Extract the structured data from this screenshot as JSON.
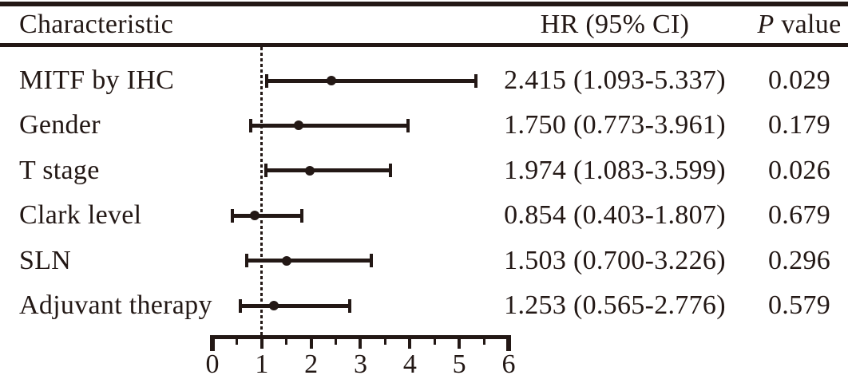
{
  "figure": {
    "headers": {
      "characteristic": "Characteristic",
      "hr": "HR (95% CI)",
      "p_italic": "P",
      "p_rest": " value"
    }
  },
  "colors": {
    "ink": "#231815",
    "background": "#ffffff"
  },
  "chart_data": {
    "type": "forest",
    "title": "",
    "columns": [
      "Characteristic",
      "HR (95% CI)",
      "P value"
    ],
    "rows": [
      {
        "label": "MITF by IHC",
        "hr": 2.415,
        "ci_low": 1.093,
        "ci_high": 5.337,
        "hr_ci_text": "2.415 (1.093-5.337)",
        "p_value": "0.029"
      },
      {
        "label": "Gender",
        "hr": 1.75,
        "ci_low": 0.773,
        "ci_high": 3.961,
        "hr_ci_text": "1.750 (0.773-3.961)",
        "p_value": "0.179"
      },
      {
        "label": "T stage",
        "hr": 1.974,
        "ci_low": 1.083,
        "ci_high": 3.599,
        "hr_ci_text": "1.974 (1.083-3.599)",
        "p_value": "0.026"
      },
      {
        "label": "Clark level",
        "hr": 0.854,
        "ci_low": 0.403,
        "ci_high": 1.807,
        "hr_ci_text": "0.854 (0.403-1.807)",
        "p_value": "0.679"
      },
      {
        "label": "SLN",
        "hr": 1.503,
        "ci_low": 0.7,
        "ci_high": 3.226,
        "hr_ci_text": "1.503 (0.700-3.226)",
        "p_value": "0.296"
      },
      {
        "label": "Adjuvant therapy",
        "hr": 1.253,
        "ci_low": 0.565,
        "ci_high": 2.776,
        "hr_ci_text": "1.253 (0.565-2.776)",
        "p_value": "0.579"
      }
    ],
    "x_axis": {
      "range": [
        0,
        6
      ],
      "major_ticks": [
        0,
        1,
        2,
        3,
        4,
        5,
        6
      ],
      "tick_labels": [
        "0",
        "1",
        "2",
        "3",
        "4",
        "5",
        "6"
      ],
      "minor_tick_step": 0.5,
      "reference_line_x": 1,
      "reference_line_style": "dotted"
    },
    "legend": null,
    "grid": false
  }
}
